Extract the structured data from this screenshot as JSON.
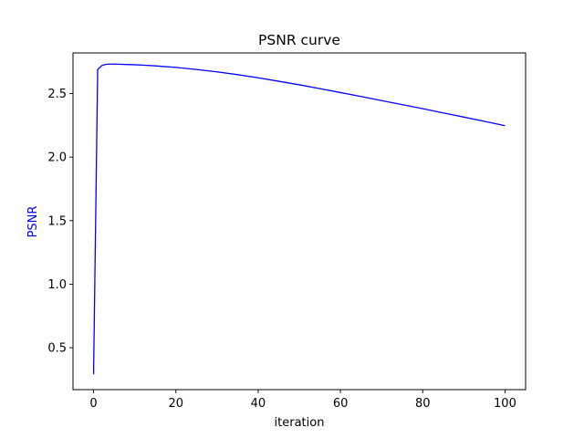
{
  "chart_data": {
    "type": "line",
    "title": "PSNR curve",
    "xlabel": "iteration",
    "ylabel": "PSNR",
    "ylabel_color": "#0000ff",
    "line_color": "#0000ff",
    "xlim": [
      -5,
      105
    ],
    "ylim": [
      0.17,
      2.82
    ],
    "xticks": [
      0,
      20,
      40,
      60,
      80,
      100
    ],
    "xtick_labels": [
      "0",
      "20",
      "40",
      "60",
      "80",
      "100"
    ],
    "yticks": [
      0.5,
      1.0,
      1.5,
      2.0,
      2.5
    ],
    "ytick_labels": [
      "0.5",
      "1.0",
      "1.5",
      "2.0",
      "2.5"
    ],
    "grid": false,
    "legend": "none",
    "series": [
      {
        "x": [
          0,
          1,
          2,
          3,
          4,
          5,
          6,
          8,
          10,
          12,
          15,
          20,
          25,
          30,
          35,
          40,
          45,
          50,
          55,
          60,
          65,
          70,
          75,
          80,
          85,
          90,
          95,
          100
        ],
        "y": [
          0.29,
          2.69,
          2.72,
          2.73,
          2.732,
          2.732,
          2.731,
          2.729,
          2.727,
          2.724,
          2.718,
          2.706,
          2.69,
          2.671,
          2.649,
          2.624,
          2.597,
          2.569,
          2.539,
          2.508,
          2.477,
          2.445,
          2.413,
          2.381,
          2.348,
          2.315,
          2.281,
          2.247
        ]
      }
    ]
  }
}
